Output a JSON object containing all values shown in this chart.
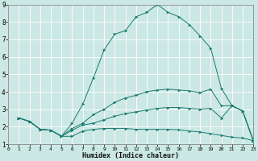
{
  "xlabel": "Humidex (Indice chaleur)",
  "bg_color": "#cbe8e4",
  "grid_color": "#b0d4d0",
  "line_color": "#1a7a6e",
  "xlim": [
    0,
    23
  ],
  "ylim": [
    1,
    9
  ],
  "xticks": [
    0,
    1,
    2,
    3,
    4,
    5,
    6,
    7,
    8,
    9,
    10,
    11,
    12,
    13,
    14,
    15,
    16,
    17,
    18,
    19,
    20,
    21,
    22,
    23
  ],
  "yticks": [
    1,
    2,
    3,
    4,
    5,
    6,
    7,
    8,
    9
  ],
  "lines": [
    {
      "x": [
        1,
        2,
        3,
        4,
        5,
        6,
        7,
        8,
        9,
        10,
        11,
        12,
        13,
        14,
        15,
        16,
        17,
        18,
        19,
        20,
        21,
        22,
        23
      ],
      "y": [
        2.5,
        2.3,
        1.85,
        1.8,
        1.45,
        1.45,
        1.75,
        1.85,
        1.9,
        1.9,
        1.9,
        1.85,
        1.85,
        1.85,
        1.85,
        1.82,
        1.75,
        1.7,
        1.6,
        1.5,
        1.4,
        1.35,
        1.2
      ]
    },
    {
      "x": [
        1,
        2,
        3,
        4,
        5,
        6,
        7,
        8,
        9,
        10,
        11,
        12,
        13,
        14,
        15,
        16,
        17,
        18,
        19,
        20,
        21,
        22,
        23
      ],
      "y": [
        2.5,
        2.3,
        1.85,
        1.8,
        1.45,
        1.8,
        2.1,
        2.2,
        2.4,
        2.6,
        2.75,
        2.85,
        2.95,
        3.05,
        3.1,
        3.1,
        3.05,
        3.0,
        3.05,
        2.5,
        3.2,
        2.9,
        1.2
      ]
    },
    {
      "x": [
        1,
        2,
        3,
        4,
        5,
        6,
        7,
        8,
        9,
        10,
        11,
        12,
        13,
        14,
        15,
        16,
        17,
        18,
        19,
        20,
        21,
        22,
        23
      ],
      "y": [
        2.5,
        2.3,
        1.85,
        1.8,
        1.45,
        1.9,
        2.2,
        2.7,
        3.0,
        3.4,
        3.65,
        3.8,
        4.0,
        4.1,
        4.15,
        4.1,
        4.05,
        3.95,
        4.15,
        3.2,
        3.2,
        2.9,
        1.2
      ]
    },
    {
      "x": [
        1,
        2,
        3,
        4,
        5,
        6,
        7,
        8,
        9,
        10,
        11,
        12,
        13,
        14,
        15,
        16,
        17,
        18,
        19,
        20,
        21,
        22,
        23
      ],
      "y": [
        2.5,
        2.3,
        1.85,
        1.8,
        1.45,
        2.2,
        3.3,
        4.8,
        6.4,
        7.3,
        7.5,
        8.3,
        8.55,
        9.0,
        8.55,
        8.3,
        7.85,
        7.2,
        6.5,
        4.2,
        3.2,
        2.9,
        1.2
      ]
    }
  ]
}
